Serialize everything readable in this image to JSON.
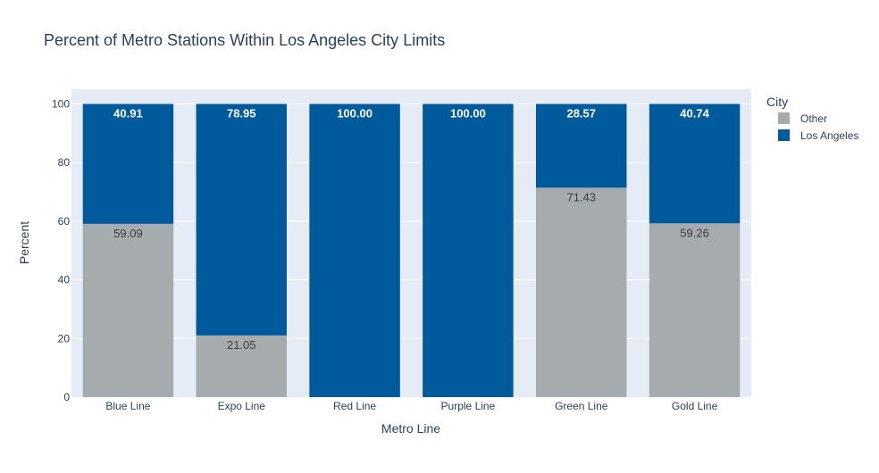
{
  "chart_data": {
    "type": "bar",
    "stacked": true,
    "title": "Percent of Metro Stations Within Los Angeles City Limits",
    "xlabel": "Metro Line",
    "ylabel": "Percent",
    "categories": [
      "Blue Line",
      "Expo Line",
      "Red Line",
      "Purple Line",
      "Green Line",
      "Gold Line"
    ],
    "series": [
      {
        "name": "Other",
        "color": "#a6abae",
        "label_color": "#3d3d3d",
        "values": [
          59.09,
          21.05,
          0,
          0,
          71.43,
          59.26
        ],
        "labels": [
          "59.09",
          "21.05",
          "",
          "",
          "71.43",
          "59.26"
        ]
      },
      {
        "name": "Los Angeles",
        "color": "#005a9c",
        "label_color": "#ffffff",
        "values": [
          40.91,
          78.95,
          100,
          100,
          28.57,
          40.74
        ],
        "labels": [
          "40.91",
          "78.95",
          "100.00",
          "100.00",
          "28.57",
          "40.74"
        ]
      }
    ],
    "ylim": [
      0,
      105
    ],
    "yticks": [
      0,
      20,
      40,
      60,
      80,
      100
    ],
    "ytick_labels": [
      "0",
      "20",
      "40",
      "60",
      "80",
      "100"
    ],
    "grid": true,
    "legend": {
      "title": "City",
      "placement": "right",
      "entries": [
        "Other",
        "Los Angeles"
      ]
    },
    "plot_background": "#e5ecf6"
  }
}
